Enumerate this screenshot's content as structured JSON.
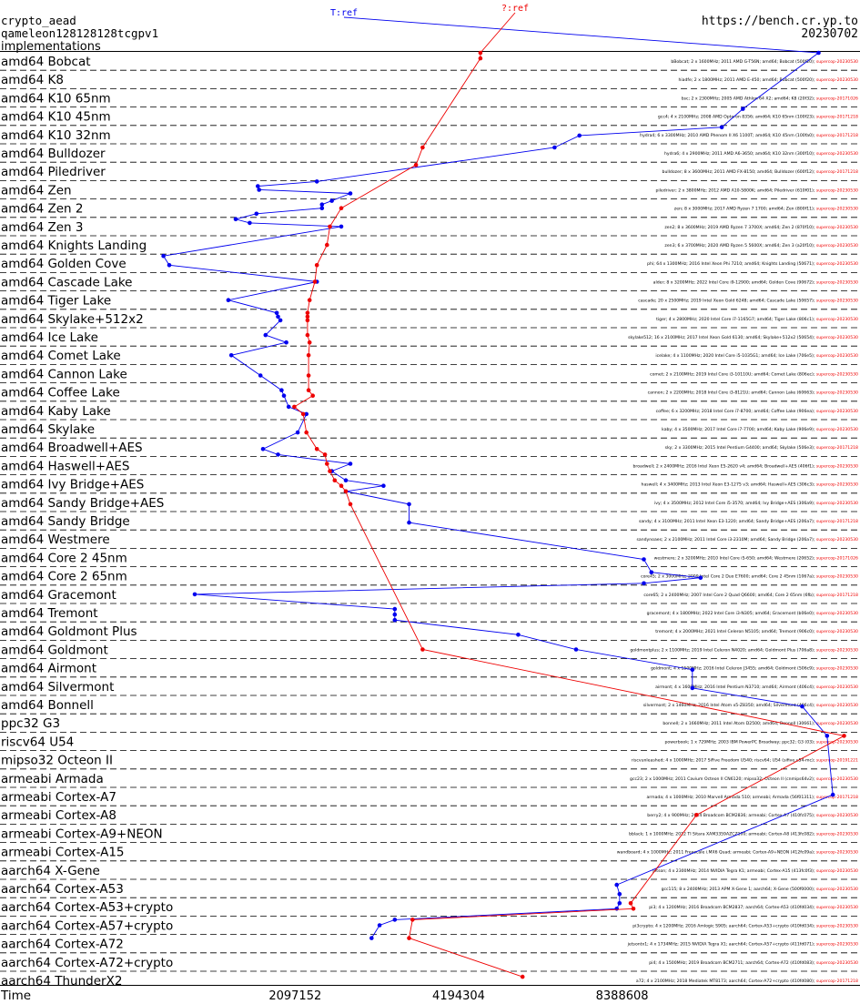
{
  "header": {
    "primitive": "crypto_aead",
    "algorithm": "qameleon128128128tcgpv1",
    "section": "implementations",
    "site": "https://bench.cr.yp.to",
    "date": "20230702"
  },
  "chart_data": {
    "type": "line",
    "orientation": "horizontal",
    "x_axis": {
      "label": "Time",
      "scale": "log2",
      "ticks": [
        2097152,
        4194304,
        8388608
      ],
      "range": [
        600000,
        23000000
      ]
    },
    "series": [
      {
        "name": "T:ref",
        "color": "#0000ee"
      },
      {
        "name": "?:ref",
        "color": "#ee0000"
      }
    ],
    "categories": [
      "amd64 Bobcat",
      "amd64 K8",
      "amd64 K10 65nm",
      "amd64 K10 45nm",
      "amd64 K10 32nm",
      "amd64 Bulldozer",
      "amd64 Piledriver",
      "amd64 Zen",
      "amd64 Zen 2",
      "amd64 Zen 3",
      "amd64 Knights Landing",
      "amd64 Golden Cove",
      "amd64 Cascade Lake",
      "amd64 Tiger Lake",
      "amd64 Skylake+512x2",
      "amd64 Ice Lake",
      "amd64 Comet Lake",
      "amd64 Cannon Lake",
      "amd64 Coffee Lake",
      "amd64 Kaby Lake",
      "amd64 Skylake",
      "amd64 Broadwell+AES",
      "amd64 Haswell+AES",
      "amd64 Ivy Bridge+AES",
      "amd64 Sandy Bridge+AES",
      "amd64 Sandy Bridge",
      "amd64 Westmere",
      "amd64 Core 2 45nm",
      "amd64 Core 2 65nm",
      "amd64 Gracemont",
      "amd64 Tremont",
      "amd64 Goldmont Plus",
      "amd64 Goldmont",
      "amd64 Airmont",
      "amd64 Silvermont",
      "amd64 Bonnell",
      "ppc32 G3",
      "riscv64 U54",
      "mipso32 Octeon II",
      "armeabi Armada",
      "armeabi Cortex-A7",
      "armeabi Cortex-A8",
      "armeabi Cortex-A9+NEON",
      "armeabi Cortex-A15",
      "aarch64 X-Gene",
      "aarch64 Cortex-A53",
      "aarch64 Cortex-A53+crypto",
      "aarch64 Cortex-A57+crypto",
      "aarch64 Cortex-A72",
      "aarch64 Cortex-A72+crypto",
      "aarch64 ThunderX2"
    ],
    "machines": [
      "bBobcat; 2 x 1600MHz; 2011 AMD G-T56N; amd64; Bobcat (500f20); supercop-20230530",
      "hiadfe; 2 x 1800MHz; 2011 AMD E-450; amd64; Bobcat (500f20); supercop-20230530",
      "bsc; 2 x 2300MHz; 2005 AMD Athlon 64 X2; amd64; K8 (20f32); supercop-20171026",
      "gcc4; 4 x 2100MHz; 2008 AMD Opteron 8356; amd64; K10 65nm (100f23); supercop-20171218",
      "hydra4; 6 x 3300MHz; 2010 AMD Phenom II X6 1100T; amd64; K10 45nm (100fa0); supercop-20171218",
      "hydra6; 4 x 2900MHz; 2011 AMD A6-3650; amd64; K10 32nm (300f10); supercop-20230530",
      "bulldozer; 8 x 3600MHz; 2011 AMD FX-8150; amd64; Bulldozer (600f12); supercop-20171218",
      "piledriver; 2 x 3800MHz; 2012 AMD A10-5800K; amd64; Piledriver (610f01); supercop-20230530",
      "zen; 8 x 3000MHz; 2017 AMD Ryzen 7 1700; amd64; Zen (800f11); supercop-20230530",
      "zen2; 8 x 3600MHz; 2019 AMD Ryzen 7 3700X; amd64; Zen 2 (870f10); supercop-20230530",
      "zen3; 6 x 3700MHz; 2020 AMD Ryzen 5 5600X; amd64; Zen 3 (a20f10); supercop-20230530",
      "phi; 64 x 1300MHz; 2016 Intel Xeon Phi 7210; amd64; Knights Landing (50671); supercop-20230530",
      "alder; 8 x 3200MHz; 2022 Intel Core i9-12900; amd64; Golden Cove (90672); supercop-20230530",
      "cascade; 20 x 2500MHz; 2019 Intel Xeon Gold 6248; amd64; Cascade Lake (50657); supercop-20230530",
      "tiger; 4 x 2800MHz; 2020 Intel Core i7-1165G7; amd64; Tiger Lake (806c1); supercop-20230530",
      "skylake512; 16 x 2100MHz; 2017 Intel Xeon Gold 6130; amd64; Skylake+512x2 (50654); supercop-20230530",
      "icelake; 4 x 1100MHz; 2020 Intel Core i5-1035G1; amd64; Ice Lake (706e5); supercop-20230530",
      "comet; 2 x 2100MHz; 2019 Intel Core i3-10110U; amd64; Comet Lake (806ec); supercop-20230530",
      "cannon; 2 x 2200MHz; 2018 Intel Core i3-8121U; amd64; Cannon Lake (60663); supercop-20230530",
      "coffee; 6 x 3200MHz; 2018 Intel Core i7-8700; amd64; Coffee Lake (906ea); supercop-20230530",
      "kaby; 4 x 3500MHz; 2017 Intel Core i7-7700; amd64; Kaby Lake (906e9); supercop-20230530",
      "sky; 2 x 3300MHz; 2015 Intel Pentium G4400; amd64; Skylake (506e3); supercop-20171218",
      "broadwell; 2 x 2400MHz; 2016 Intel Xeon E5-2620 v4; amd64; Broadwell+AES (406f1); supercop-20230530",
      "haswell; 4 x 3400MHz; 2013 Intel Xeon E3-1275 v3; amd64; Haswell+AES (306c3); supercop-20230530",
      "ivy; 4 x 3500MHz; 2012 Intel Core i5-3570; amd64; Ivy Bridge+AES (306a9); supercop-20230530",
      "sandy; 4 x 3100MHz; 2011 Intel Xeon E3-1220; amd64; Sandy Bridge+AES (206a7); supercop-20171218",
      "sandynoaes; 2 x 2100MHz; 2011 Intel Core i3-2310M; amd64; Sandy Bridge (206a7); supercop-20230530",
      "westmere; 2 x 3200MHz; 2010 Intel Core i5-650; amd64; Westmere (20652); supercop-20171026",
      "core45; 2 x 3000MHz; 2009 Intel Core 2 Duo E7600; amd64; Core 2 45nm (1067a); supercop-20230530",
      "core65; 2 x 2400MHz; 2007 Intel Core 2 Quad Q6600; amd64; Core 2 65nm (6fb); supercop-20171218",
      "gracemont; 4 x 1800MHz; 2022 Intel Core i3-N305; amd64; Gracemont (b06e0); supercop-20230530",
      "tremont; 4 x 2000MHz; 2021 Intel Celeron N5105; amd64; Tremont (906c0); supercop-20230530",
      "goldmontplus; 2 x 1100MHz; 2019 Intel Celeron N4020; amd64; Goldmont Plus (706a8); supercop-20230530",
      "goldmont; 4 x 1500MHz; 2016 Intel Celeron J3455; amd64; Goldmont (506c9); supercop-20230530",
      "airmont; 4 x 1600MHz; 2016 Intel Pentium N3710; amd64; Airmont (406c4); supercop-20230530",
      "silvermont; 2 x 1460MHz; 2016 Intel Atom x5-Z8350; amd64; Silvermont (406c4); supercop-20230530",
      "bonnell; 2 x 1660MHz; 2011 Intel Atom D2500; amd64; Bonnell (30661); supercop-20230530",
      "powerbook; 1 x 729MHz; 2003 IBM PowerPC Broadway; ppc32; G3 (03); supercop-20230530",
      "riscvunleashed; 4 x 1000MHz; 2017 SiFive Freedom U540; riscv64; U54 (sifive,u54-mc); supercop-20191221",
      "gcc23; 2 x 1000MHz; 2011 Cavium Octeon II CN6120; mipso32; Octeon II (cnmips64v2); supercop-20230530",
      "armada; 4 x 1000MHz; 2010 Marvell Armada 510; armeabi; Armada (56f01311); supercop-20171218",
      "berry2; 4 x 900MHz; 2014 Broadcom BCM2836; armeabi; Cortex-A7 (410fc075); supercop-20230530",
      "bblack; 1 x 1000MHz; 2012 TI Sitara XAM3359AZCZ100; armeabi; Cortex-A8 (413fc082); supercop-20230530",
      "wandboard; 4 x 1000MHz; 2011 Freescale i.MX6 Quad; armeabi; Cortex-A9+NEON (412fc09a); supercop-20230530",
      "jetson; 4 x 2300MHz; 2014 NVIDIA Tegra K1; armeabi; Cortex-A15 (413fc0f3); supercop-20230530",
      "gcc115; 8 x 2400MHz; 2013 APM X-Gene 1; aarch64; X-Gene (500f0000); supercop-20230530",
      "pi3; 4 x 1200MHz; 2016 Broadcom BCM2837; aarch64; Cortex-A53 (410fd034); supercop-20230530",
      "pi3crypto; 4 x 1200MHz; 2016 Amlogic S905; aarch64; Cortex-A53+crypto (410fd034); supercop-20230530",
      "jetsontx1; 4 x 1734MHz; 2015 NVIDIA Tegra X1; aarch64; Cortex-A57+crypto (411fd071); supercop-20230530",
      "pi4; 4 x 1500MHz; 2019 Broadcom BCM2711; aarch64; Cortex-A72 (410fd083); supercop-20230530",
      "a72; 4 x 2100MHz; 2018 Mediatek MT8173; aarch64; Cortex-A72+crypto (410fd080); supercop-20171218",
      "gcc-tx2; 64 x 2500MHz; 2018 Cavium ThunderX2 CN9980; aarch64; ThunderX2 (431f0af1); supercop-20230530"
    ],
    "points": [
      {
        "row": 0,
        "sub": 0.05,
        "blue": 19300000,
        "red": 4600000
      },
      {
        "row": 0,
        "sub": 0.35,
        "blue": null,
        "red": 4600000
      },
      {
        "row": 3,
        "sub": 0.1,
        "blue": 14000000,
        "red": null
      },
      {
        "row": 4,
        "sub": 0.1,
        "blue": 12800000,
        "red": null
      },
      {
        "row": 4,
        "sub": 0.55,
        "blue": 7000000,
        "red": null
      },
      {
        "row": 5,
        "sub": 0.2,
        "blue": 6300000,
        "red": 3600000
      },
      {
        "row": 6,
        "sub": 0.15,
        "blue": null,
        "red": 3500000
      },
      {
        "row": 7,
        "sub": 0.05,
        "blue": 2300000,
        "red": null
      },
      {
        "row": 7,
        "sub": 0.3,
        "blue": 1790000,
        "red": null
      },
      {
        "row": 7,
        "sub": 0.5,
        "blue": 1800000,
        "red": null
      },
      {
        "row": 7,
        "sub": 0.7,
        "blue": 2650000,
        "red": null
      },
      {
        "row": 8,
        "sub": 0.1,
        "blue": 2450000,
        "red": null
      },
      {
        "row": 8,
        "sub": 0.3,
        "blue": 2350000,
        "red": null
      },
      {
        "row": 8,
        "sub": 0.5,
        "blue": 2350000,
        "red": 2550000
      },
      {
        "row": 8,
        "sub": 0.8,
        "blue": 1780000,
        "red": null
      },
      {
        "row": 9,
        "sub": 0.1,
        "blue": 1630000,
        "red": null
      },
      {
        "row": 9,
        "sub": 0.3,
        "blue": 1730000,
        "red": null
      },
      {
        "row": 9,
        "sub": 0.5,
        "blue": 2550000,
        "red": 2430000
      },
      {
        "row": 10,
        "sub": 0.5,
        "blue": null,
        "red": 2400000
      },
      {
        "row": 11,
        "sub": 0.1,
        "blue": 1200000,
        "red": null
      },
      {
        "row": 11,
        "sub": 0.6,
        "blue": 1230000,
        "red": 2300000
      },
      {
        "row": 12,
        "sub": 0.5,
        "blue": 2300000,
        "red": 2280000
      },
      {
        "row": 13,
        "sub": 0.5,
        "blue": 1580000,
        "red": 2230000
      },
      {
        "row": 14,
        "sub": 0.2,
        "blue": 1940000,
        "red": 2210000
      },
      {
        "row": 14,
        "sub": 0.4,
        "blue": 1950000,
        "red": 2210000
      },
      {
        "row": 14,
        "sub": 0.6,
        "blue": 1970000,
        "red": 2210000
      },
      {
        "row": 15,
        "sub": 0.4,
        "blue": 1850000,
        "red": 2210000
      },
      {
        "row": 15,
        "sub": 0.8,
        "blue": 2020000,
        "red": 2230000
      },
      {
        "row": 16,
        "sub": 0.5,
        "blue": 1600000,
        "red": 2220000
      },
      {
        "row": 17,
        "sub": 0.6,
        "blue": 1810000,
        "red": 2220000
      },
      {
        "row": 18,
        "sub": 0.4,
        "blue": 1980000,
        "red": 2220000
      },
      {
        "row": 18,
        "sub": 0.7,
        "blue": 2000000,
        "red": 2260000
      },
      {
        "row": 19,
        "sub": 0.3,
        "blue": 2040000,
        "red": 2090000
      },
      {
        "row": 19,
        "sub": 0.7,
        "blue": 2200000,
        "red": 2170000
      },
      {
        "row": 20,
        "sub": 0.7,
        "blue": 2120000,
        "red": 2200000
      },
      {
        "row": 21,
        "sub": 0.6,
        "blue": 1830000,
        "red": 2300000
      },
      {
        "row": 21,
        "sub": 0.9,
        "blue": 1950000,
        "red": 2380000
      },
      {
        "row": 22,
        "sub": 0.4,
        "blue": 2650000,
        "red": 2400000
      },
      {
        "row": 22,
        "sub": 0.8,
        "blue": 2450000,
        "red": 2430000
      },
      {
        "row": 23,
        "sub": 0.3,
        "blue": 2600000,
        "red": 2480000
      },
      {
        "row": 23,
        "sub": 0.6,
        "blue": 3050000,
        "red": 2550000
      },
      {
        "row": 23,
        "sub": 0.9,
        "blue": 2600000,
        "red": 2600000
      },
      {
        "row": 24,
        "sub": 0.6,
        "blue": 3400000,
        "red": 2650000
      },
      {
        "row": 25,
        "sub": 0.6,
        "blue": 3400000,
        "red": null
      },
      {
        "row": 27,
        "sub": 0.6,
        "blue": 9200000,
        "red": null
      },
      {
        "row": 28,
        "sub": 0.3,
        "blue": 9500000,
        "red": null
      },
      {
        "row": 28,
        "sub": 0.6,
        "blue": 11700000,
        "red": null
      },
      {
        "row": 28,
        "sub": 0.9,
        "blue": 9200000,
        "red": null
      },
      {
        "row": 29,
        "sub": 0.5,
        "blue": 1370000,
        "red": null
      },
      {
        "row": 30,
        "sub": 0.3,
        "blue": 3200000,
        "red": null
      },
      {
        "row": 30,
        "sub": 0.6,
        "blue": 3200000,
        "red": null
      },
      {
        "row": 30,
        "sub": 0.9,
        "blue": 3200000,
        "red": null
      },
      {
        "row": 31,
        "sub": 0.7,
        "blue": 5400000,
        "red": null
      },
      {
        "row": 32,
        "sub": 0.5,
        "blue": 6900000,
        "red": 3600000
      },
      {
        "row": 33,
        "sub": 0.6,
        "blue": 11300000,
        "red": null
      },
      {
        "row": 34,
        "sub": 0.6,
        "blue": 11300000,
        "red": null
      },
      {
        "row": 35,
        "sub": 0.6,
        "blue": 18000000,
        "red": null
      },
      {
        "row": 37,
        "sub": 0.2,
        "blue": 20000000,
        "red": 21500000
      },
      {
        "row": 40,
        "sub": 0.4,
        "blue": 20500000,
        "red": null
      },
      {
        "row": 41,
        "sub": 0.5,
        "blue": null,
        "red": 11500000
      },
      {
        "row": 45,
        "sub": 0.3,
        "blue": 8200000,
        "red": null
      },
      {
        "row": 45,
        "sub": 0.8,
        "blue": 8300000,
        "red": null
      },
      {
        "row": 46,
        "sub": 0.3,
        "blue": 8300000,
        "red": 8700000
      },
      {
        "row": 46,
        "sub": 0.6,
        "blue": 8200000,
        "red": 8800000
      },
      {
        "row": 47,
        "sub": 0.2,
        "blue": 3200000,
        "red": 3450000
      },
      {
        "row": 47,
        "sub": 0.5,
        "blue": 3000000,
        "red": null
      },
      {
        "row": 48,
        "sub": 0.2,
        "blue": 2900000,
        "red": 3400000
      },
      {
        "row": 50,
        "sub": 0.3,
        "blue": null,
        "red": 5500000
      }
    ]
  }
}
